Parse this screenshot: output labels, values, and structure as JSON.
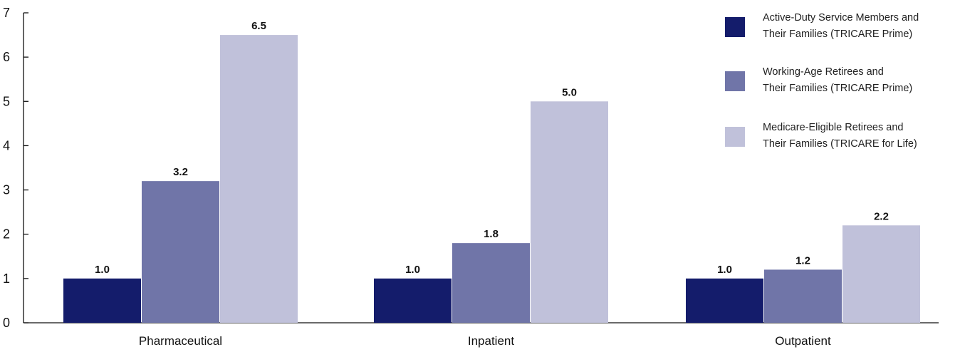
{
  "chart_data": {
    "type": "bar",
    "categories": [
      "Pharmaceutical",
      "Inpatient",
      "Outpatient"
    ],
    "series": [
      {
        "name": "Active-Duty Service Members and Their Families (TRICARE Prime)",
        "legend_lines": [
          "Active-Duty Service Members and",
          "Their Families (TRICARE Prime)"
        ],
        "values": [
          1.0,
          1.0,
          1.0
        ],
        "labels": [
          "1.0",
          "1.0",
          "1.0"
        ],
        "color": "#141c6b"
      },
      {
        "name": "Working-Age Retirees and Their Families (TRICARE Prime)",
        "legend_lines": [
          "Working-Age Retirees and",
          "Their Families (TRICARE Prime)"
        ],
        "values": [
          3.2,
          1.8,
          1.2
        ],
        "labels": [
          "3.2",
          "1.8",
          "1.2"
        ],
        "color": "#7075a8"
      },
      {
        "name": "Medicare-Eligible Retirees and Their Families (TRICARE for Life)",
        "legend_lines": [
          "Medicare-Eligible Retirees and",
          "Their Families (TRICARE for Life)"
        ],
        "values": [
          6.5,
          5.0,
          2.2
        ],
        "labels": [
          "6.5",
          "5.0",
          "2.2"
        ],
        "color": "#c0c1da"
      }
    ],
    "ylim": [
      0,
      7
    ],
    "yticks": [
      "0",
      "1",
      "2",
      "3",
      "4",
      "5",
      "6",
      "7"
    ],
    "title": "",
    "xlabel": "",
    "ylabel": "",
    "grid": false,
    "legend_position": "top-right"
  }
}
